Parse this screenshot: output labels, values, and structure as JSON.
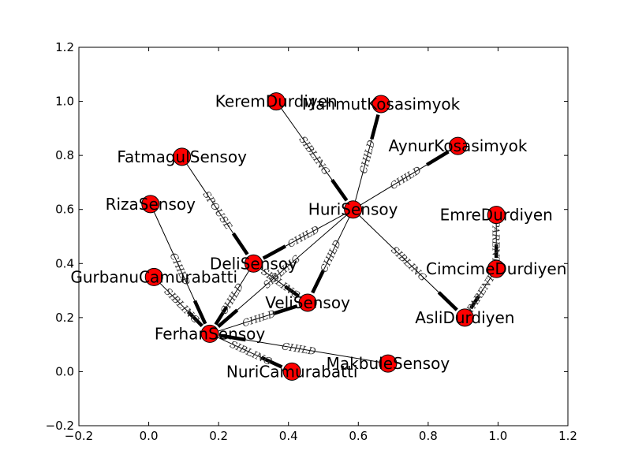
{
  "chart_data": {
    "type": "network",
    "xlim": [
      -0.2,
      1.2
    ],
    "ylim": [
      -0.2,
      1.2
    ],
    "xticks": [
      "−0.2",
      "0.0",
      "0.2",
      "0.4",
      "0.6",
      "0.8",
      "1.0",
      "1.2"
    ],
    "yticks": [
      "−0.2",
      "0.0",
      "0.2",
      "0.4",
      "0.6",
      "0.8",
      "1.0",
      "1.2"
    ],
    "colors": {
      "node_fill": "#ff0000",
      "node_stroke": "#000000",
      "edge": "#000000"
    },
    "nodes": [
      {
        "id": "KeremDurdiyen",
        "x": 0.365,
        "y": 1.0
      },
      {
        "id": "MahmutKosasimyok",
        "x": 0.665,
        "y": 0.99
      },
      {
        "id": "AynurKosasimyok",
        "x": 0.885,
        "y": 0.835
      },
      {
        "id": "FatmagulSensoy",
        "x": 0.095,
        "y": 0.795
      },
      {
        "id": "RizaSensoy",
        "x": 0.005,
        "y": 0.62
      },
      {
        "id": "HuriSensoy",
        "x": 0.585,
        "y": 0.6
      },
      {
        "id": "EmreDurdiyen",
        "x": 0.995,
        "y": 0.58
      },
      {
        "id": "DeliSensoy",
        "x": 0.3,
        "y": 0.4
      },
      {
        "id": "CimcimeDurdiyen",
        "x": 0.995,
        "y": 0.38
      },
      {
        "id": "GurbanuCamurabatti",
        "x": 0.015,
        "y": 0.35
      },
      {
        "id": "VeliSensoy",
        "x": 0.455,
        "y": 0.255
      },
      {
        "id": "AsliDurdiyen",
        "x": 0.905,
        "y": 0.2
      },
      {
        "id": "FerhanSensoy",
        "x": 0.175,
        "y": 0.14
      },
      {
        "id": "NuriCamurabatti",
        "x": 0.41,
        "y": 0.0
      },
      {
        "id": "MakbuleSensoy",
        "x": 0.685,
        "y": 0.03
      }
    ],
    "edges": [
      {
        "source": "KeremDurdiyen",
        "target": "HuriSensoy",
        "label": "SIBLING"
      },
      {
        "source": "HuriSensoy",
        "target": "MahmutKosasimyok",
        "label": "CHILD"
      },
      {
        "source": "HuriSensoy",
        "target": "AynurKosasimyok",
        "label": "CHILD"
      },
      {
        "source": "FatmagulSensoy",
        "target": "DeliSensoy",
        "label": "SPOUSE"
      },
      {
        "source": "HuriSensoy",
        "target": "DeliSensoy",
        "label": "CHILD"
      },
      {
        "source": "HuriSensoy",
        "target": "VeliSensoy",
        "label": "CHILD"
      },
      {
        "source": "HuriSensoy",
        "target": "AsliDurdiyen",
        "label": "SIBLING"
      },
      {
        "source": "HuriSensoy",
        "target": "FerhanSensoy",
        "label": "SIBLING"
      },
      {
        "source": "RizaSensoy",
        "target": "FerhanSensoy",
        "label": "CHILD"
      },
      {
        "source": "GurbanuCamurabatti",
        "target": "FerhanSensoy",
        "label": "SIBLING"
      },
      {
        "source": "DeliSensoy",
        "target": "FerhanSensoy",
        "label": "CHILD"
      },
      {
        "source": "DeliSensoy",
        "target": "VeliSensoy",
        "label": "SIBLING"
      },
      {
        "source": "FerhanSensoy",
        "target": "VeliSensoy",
        "label": "CHILD"
      },
      {
        "source": "FerhanSensoy",
        "target": "NuriCamurabatti",
        "label": "SIBLING"
      },
      {
        "source": "MakbuleSensoy",
        "target": "FerhanSensoy",
        "label": "CHILD"
      },
      {
        "source": "EmreDurdiyen",
        "target": "CimcimeDurdiyen",
        "label": "PARENT"
      },
      {
        "source": "CimcimeDurdiyen",
        "target": "AsliDurdiyen",
        "label": "PARENT"
      }
    ]
  }
}
